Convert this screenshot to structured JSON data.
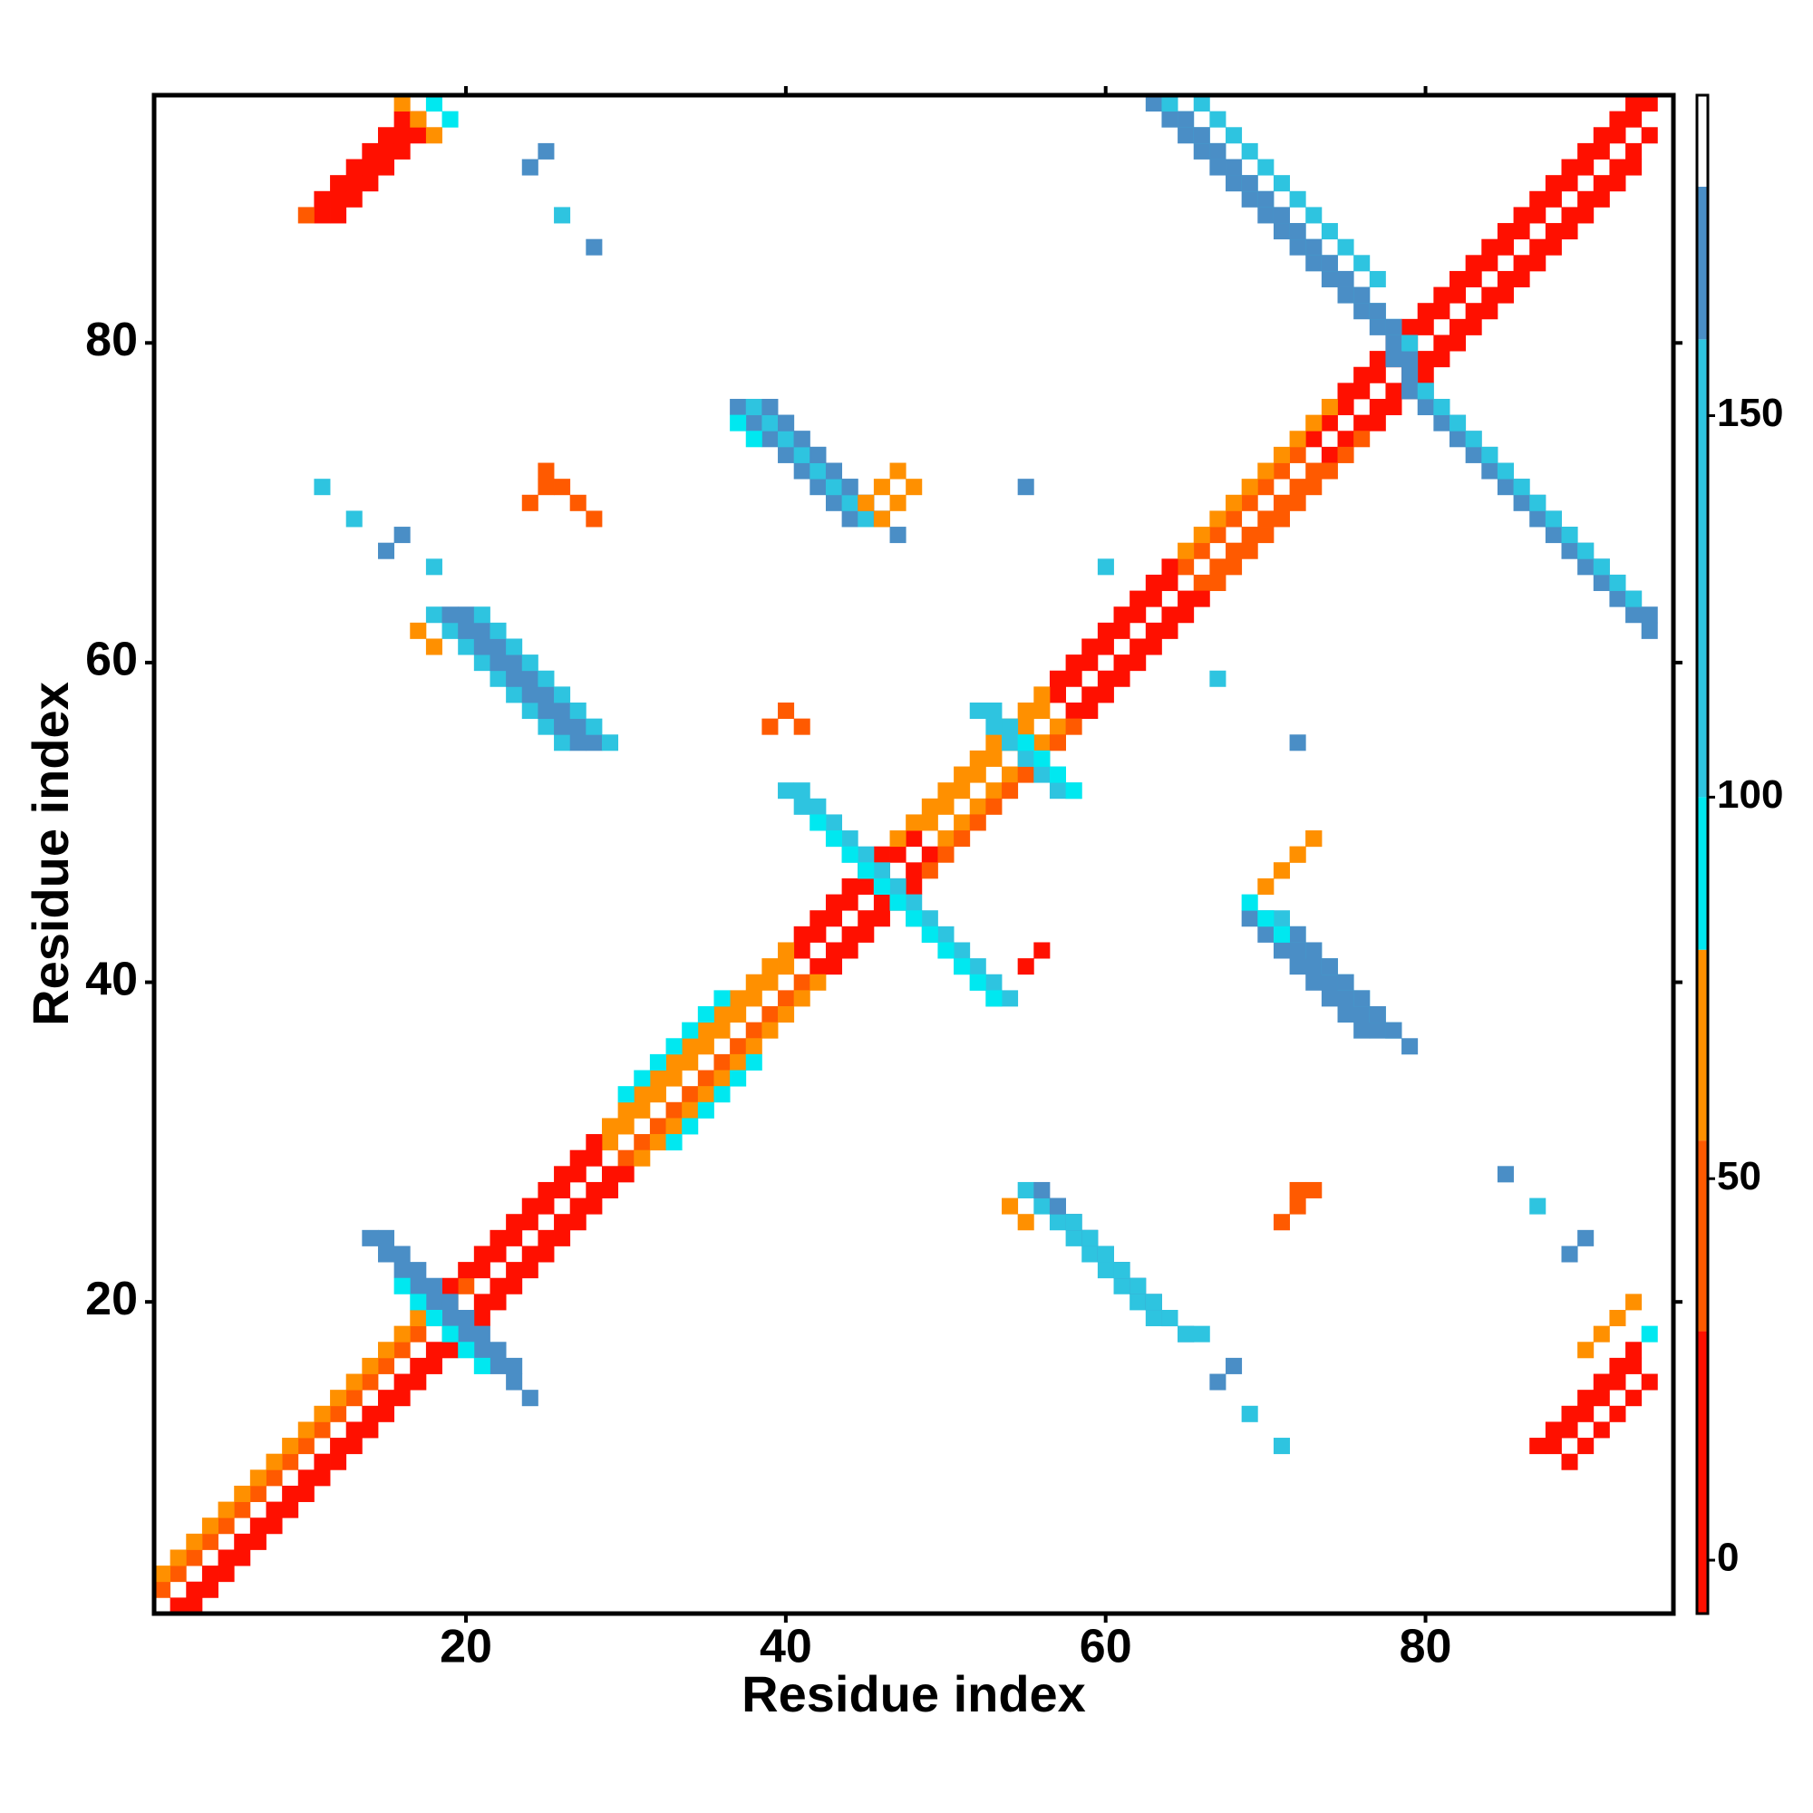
{
  "chart_data": {
    "type": "heatmap",
    "x_label": "Residue index",
    "y_label": "Residue index",
    "xlim": [
      0.5,
      95.5
    ],
    "ylim": [
      0.5,
      95.5
    ],
    "xticks": [
      20,
      40,
      60,
      80
    ],
    "yticks": [
      20,
      40,
      60,
      80
    ],
    "colorbar": {
      "lim": [
        -7,
        192
      ],
      "ticks": [
        0,
        50,
        100,
        150
      ],
      "bins": [
        -7,
        30,
        55,
        80,
        100,
        160,
        180,
        192
      ],
      "colors": [
        "#ff1000",
        "#ff5a00",
        "#ff9000",
        "#00e8f0",
        "#2ec4e0",
        "#4a8ec6",
        "#ffffff"
      ]
    },
    "segments": [
      {
        "x": 1,
        "y": 2,
        "n": 20,
        "step": 1,
        "value": 40
      },
      {
        "x": 21,
        "y": 22,
        "n": 8,
        "step": 1,
        "value": 10
      },
      {
        "x": 29,
        "y": 30,
        "n": 12,
        "step": 1,
        "value": 60
      },
      {
        "x": 41,
        "y": 42,
        "n": 8,
        "step": 1,
        "value": 10
      },
      {
        "x": 49,
        "y": 50,
        "n": 8,
        "step": 1,
        "value": 60
      },
      {
        "x": 57,
        "y": 58,
        "n": 8,
        "step": 1,
        "value": 10
      },
      {
        "x": 65,
        "y": 66,
        "n": 8,
        "step": 1,
        "value": 40
      },
      {
        "x": 73,
        "y": 74,
        "n": 22,
        "step": 1,
        "value": 10
      },
      {
        "x": 2,
        "y": 1,
        "n": 20,
        "step": 1,
        "value": 10
      },
      {
        "x": 22,
        "y": 21,
        "n": 8,
        "step": 1,
        "value": 10
      },
      {
        "x": 30,
        "y": 29,
        "n": 12,
        "step": 1,
        "value": 45
      },
      {
        "x": 42,
        "y": 41,
        "n": 8,
        "step": 1,
        "value": 5
      },
      {
        "x": 50,
        "y": 49,
        "n": 8,
        "step": 1,
        "value": 60
      },
      {
        "x": 58,
        "y": 57,
        "n": 8,
        "step": 1,
        "value": 5
      },
      {
        "x": 66,
        "y": 65,
        "n": 8,
        "step": 1,
        "value": 35
      },
      {
        "x": 74,
        "y": 73,
        "n": 21,
        "step": 1,
        "value": 10
      },
      {
        "x": 1,
        "y": 3,
        "n": 18,
        "step": 1,
        "value": 60
      },
      {
        "x": 19,
        "y": 21,
        "n": 10,
        "step": 1,
        "value": 20
      },
      {
        "x": 29,
        "y": 31,
        "n": 12,
        "step": 1,
        "value": 70
      },
      {
        "x": 41,
        "y": 43,
        "n": 6,
        "step": 1,
        "value": 15
      },
      {
        "x": 47,
        "y": 49,
        "n": 10,
        "step": 1,
        "value": 60
      },
      {
        "x": 57,
        "y": 59,
        "n": 8,
        "step": 1,
        "value": 15
      },
      {
        "x": 65,
        "y": 67,
        "n": 10,
        "step": 1,
        "value": 60
      },
      {
        "x": 75,
        "y": 77,
        "n": 19,
        "step": 1,
        "value": 15
      },
      {
        "x": 3,
        "y": 1,
        "n": 18,
        "step": 1,
        "value": 25
      },
      {
        "x": 21,
        "y": 19,
        "n": 10,
        "step": 1,
        "value": 10
      },
      {
        "x": 31,
        "y": 29,
        "n": 12,
        "step": 1,
        "value": 60
      },
      {
        "x": 43,
        "y": 41,
        "n": 6,
        "step": 1,
        "value": 10
      },
      {
        "x": 49,
        "y": 47,
        "n": 10,
        "step": 1,
        "value": 50
      },
      {
        "x": 59,
        "y": 57,
        "n": 8,
        "step": 1,
        "value": 10
      },
      {
        "x": 67,
        "y": 65,
        "n": 10,
        "step": 1,
        "value": 45
      },
      {
        "x": 77,
        "y": 75,
        "n": 17,
        "step": 1,
        "value": 10
      },
      {
        "x": 30,
        "y": 33,
        "n": 7,
        "step": 1,
        "value": 90
      },
      {
        "x": 33,
        "y": 30,
        "n": 6,
        "step": 1,
        "value": 90
      },
      {
        "x": 14,
        "y": 24,
        "n": 11,
        "step": -1,
        "value": 170
      },
      {
        "x": 15,
        "y": 24,
        "n": 9,
        "step": -1,
        "value": 170
      },
      {
        "x": 16,
        "y": 21,
        "n": 6,
        "step": -1,
        "value": 90
      },
      {
        "x": 40,
        "y": 52,
        "n": 14,
        "step": -1,
        "value": 150
      },
      {
        "x": 41,
        "y": 52,
        "n": 14,
        "step": -1,
        "value": 110
      },
      {
        "x": 42,
        "y": 50,
        "n": 12,
        "step": -1,
        "value": 90
      },
      {
        "x": 39,
        "y": 56,
        "n": 1,
        "step": -1,
        "value": 40
      },
      {
        "x": 40,
        "y": 57,
        "n": 2,
        "step": -1,
        "value": 40
      },
      {
        "x": 55,
        "y": 41,
        "n": 2,
        "step": 1,
        "value": 30
      },
      {
        "x": 52,
        "y": 57,
        "n": 6,
        "step": -1,
        "value": 110
      },
      {
        "x": 53,
        "y": 57,
        "n": 6,
        "step": -1,
        "value": 150
      },
      {
        "x": 55,
        "y": 55,
        "n": 4,
        "step": -1,
        "value": 100
      },
      {
        "x": 63,
        "y": 95,
        "n": 17,
        "step": -1,
        "value": 170
      },
      {
        "x": 64,
        "y": 95,
        "n": 16,
        "step": -1,
        "value": 150
      },
      {
        "x": 65,
        "y": 94,
        "n": 14,
        "step": -1,
        "value": 170
      },
      {
        "x": 66,
        "y": 95,
        "n": 12,
        "step": -1,
        "value": 110
      },
      {
        "x": 78,
        "y": 79,
        "n": 17,
        "step": -1,
        "value": 170
      },
      {
        "x": 79,
        "y": 77,
        "n": 16,
        "step": -1,
        "value": 170
      },
      {
        "x": 80,
        "y": 77,
        "n": 14,
        "step": -1,
        "value": 110
      },
      {
        "x": 37,
        "y": 76,
        "n": 8,
        "step": -1,
        "value": 170
      },
      {
        "x": 38,
        "y": 76,
        "n": 8,
        "step": -1,
        "value": 150
      },
      {
        "x": 39,
        "y": 76,
        "n": 8,
        "step": -1,
        "value": 170
      },
      {
        "x": 40,
        "y": 75,
        "n": 8,
        "step": -1,
        "value": 170
      },
      {
        "x": 37,
        "y": 75,
        "n": 2,
        "step": -1,
        "value": 90
      },
      {
        "x": 69,
        "y": 44,
        "n": 8,
        "step": -1,
        "value": 170
      },
      {
        "x": 70,
        "y": 44,
        "n": 8,
        "step": -1,
        "value": 170
      },
      {
        "x": 71,
        "y": 44,
        "n": 8,
        "step": -1,
        "value": 150
      },
      {
        "x": 72,
        "y": 43,
        "n": 8,
        "step": -1,
        "value": 170
      },
      {
        "x": 69,
        "y": 45,
        "n": 3,
        "step": -1,
        "value": 90
      },
      {
        "x": 18,
        "y": 63,
        "n": 9,
        "step": -1,
        "value": 150
      },
      {
        "x": 19,
        "y": 63,
        "n": 9,
        "step": -1,
        "value": 170
      },
      {
        "x": 20,
        "y": 63,
        "n": 9,
        "step": -1,
        "value": 170
      },
      {
        "x": 21,
        "y": 63,
        "n": 9,
        "step": -1,
        "value": 110
      },
      {
        "x": 17,
        "y": 62,
        "n": 2,
        "step": -1,
        "value": 60
      },
      {
        "x": 55,
        "y": 27,
        "n": 9,
        "step": -1,
        "value": 110
      },
      {
        "x": 56,
        "y": 27,
        "n": 9,
        "step": -1,
        "value": 170
      },
      {
        "x": 57,
        "y": 26,
        "n": 9,
        "step": -1,
        "value": 170
      },
      {
        "x": 58,
        "y": 25,
        "n": 8,
        "step": -1,
        "value": 150
      },
      {
        "x": 54,
        "y": 26,
        "n": 2,
        "step": -1,
        "value": 60
      },
      {
        "x": 11,
        "y": 88,
        "n": 7,
        "step": 1,
        "value": 10
      },
      {
        "x": 11,
        "y": 89,
        "n": 6,
        "step": 1,
        "value": 20
      },
      {
        "x": 12,
        "y": 88,
        "n": 6,
        "step": 1,
        "value": 15
      },
      {
        "x": 10,
        "y": 88,
        "n": 1,
        "step": 1,
        "value": 40
      },
      {
        "x": 16,
        "y": 95,
        "n": 3,
        "step": -1,
        "value": 60
      },
      {
        "x": 18,
        "y": 95,
        "n": 2,
        "step": -1,
        "value": 85
      },
      {
        "x": 87,
        "y": 11,
        "n": 7,
        "step": 1,
        "value": 10
      },
      {
        "x": 88,
        "y": 11,
        "n": 6,
        "step": 1,
        "value": 20
      },
      {
        "x": 89,
        "y": 10,
        "n": 6,
        "step": 1,
        "value": 15
      },
      {
        "x": 90,
        "y": 17,
        "n": 4,
        "step": 1,
        "value": 60
      },
      {
        "x": 94,
        "y": 18,
        "n": 1,
        "step": 1,
        "value": 90
      },
      {
        "x": 24,
        "y": 91,
        "n": 2,
        "step": 1,
        "value": 170
      },
      {
        "x": 26,
        "y": 88,
        "n": 1,
        "step": 1,
        "value": 150
      },
      {
        "x": 28,
        "y": 86,
        "n": 1,
        "step": 1,
        "value": 170
      },
      {
        "x": 11,
        "y": 71,
        "n": 1,
        "step": 1,
        "value": 150
      },
      {
        "x": 13,
        "y": 69,
        "n": 1,
        "step": 1,
        "value": 150
      },
      {
        "x": 15,
        "y": 67,
        "n": 2,
        "step": 1,
        "value": 170
      },
      {
        "x": 18,
        "y": 66,
        "n": 1,
        "step": 1,
        "value": 150
      },
      {
        "x": 85,
        "y": 28,
        "n": 1,
        "step": 1,
        "value": 170
      },
      {
        "x": 87,
        "y": 26,
        "n": 1,
        "step": 1,
        "value": 150
      },
      {
        "x": 89,
        "y": 23,
        "n": 2,
        "step": 1,
        "value": 170
      },
      {
        "x": 71,
        "y": 11,
        "n": 1,
        "step": 1,
        "value": 150
      },
      {
        "x": 69,
        "y": 13,
        "n": 1,
        "step": 1,
        "value": 150
      },
      {
        "x": 67,
        "y": 15,
        "n": 2,
        "step": 1,
        "value": 170
      },
      {
        "x": 66,
        "y": 18,
        "n": 1,
        "step": 1,
        "value": 150
      },
      {
        "x": 55,
        "y": 71,
        "n": 1,
        "step": 1,
        "value": 170
      },
      {
        "x": 72,
        "y": 55,
        "n": 1,
        "step": 1,
        "value": 170
      },
      {
        "x": 60,
        "y": 66,
        "n": 1,
        "step": 1,
        "value": 150
      },
      {
        "x": 67,
        "y": 59,
        "n": 1,
        "step": 1,
        "value": 150
      },
      {
        "x": 24,
        "y": 70,
        "n": 2,
        "step": 1,
        "value": 50
      },
      {
        "x": 25,
        "y": 72,
        "n": 4,
        "step": -1,
        "value": 45
      },
      {
        "x": 45,
        "y": 70,
        "n": 3,
        "step": 1,
        "value": 60
      },
      {
        "x": 46,
        "y": 69,
        "n": 3,
        "step": 1,
        "value": 60
      },
      {
        "x": 70,
        "y": 46,
        "n": 4,
        "step": 1,
        "value": 60
      },
      {
        "x": 71,
        "y": 47,
        "n": 3,
        "step": 1,
        "value": 60
      },
      {
        "x": 71,
        "y": 25,
        "n": 3,
        "step": 1,
        "value": 50
      },
      {
        "x": 72,
        "y": 27,
        "n": 1,
        "step": 1,
        "value": 40
      }
    ]
  }
}
